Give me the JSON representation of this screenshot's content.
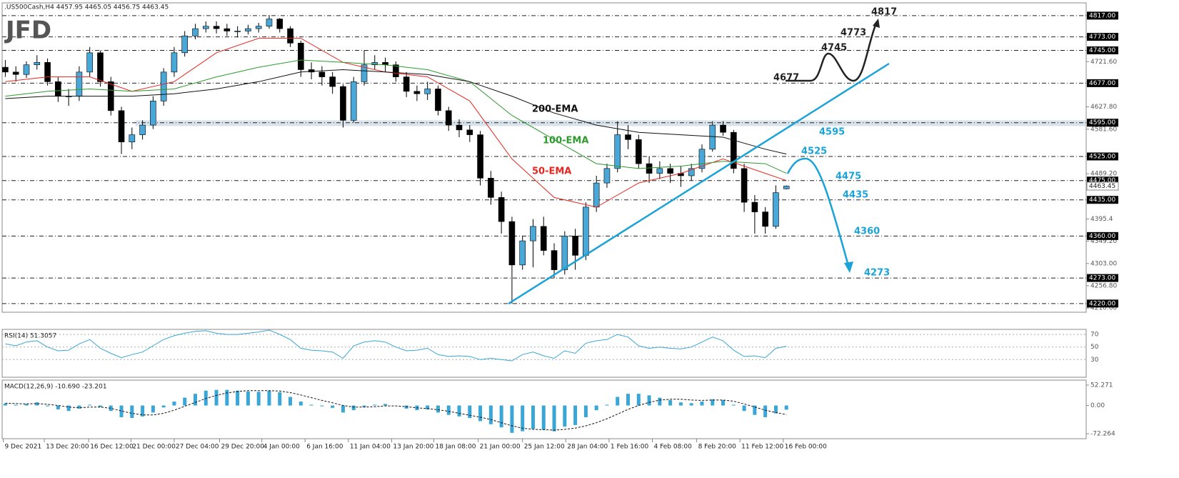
{
  "header": {
    "title": ".US500Cash,H4  4457.95 4465.05 4456.75 4463.45",
    "logo": "JFD"
  },
  "chart_data": [
    {
      "type": "candlestick",
      "xlim": [
        -0.3,
        102.4
      ],
      "ylim": [
        4202,
        4842
      ],
      "colors": {
        "up": "#4aa8d8",
        "down": "#000000"
      },
      "open": [
        4710,
        4700,
        4695,
        4715,
        4720,
        4680,
        4650,
        4650,
        4700,
        4740,
        4680,
        4620,
        4555,
        4570,
        4590,
        4640,
        4700,
        4740,
        4775,
        4790,
        4795,
        4790,
        4785,
        4785,
        4790,
        4795,
        4810,
        4790,
        4760,
        4705,
        4700,
        4690,
        4670,
        4600,
        4680,
        4715,
        4720,
        4715,
        4690,
        4660,
        4655,
        4665,
        4620,
        4590,
        4580,
        4570,
        4480,
        4440,
        4390,
        4300,
        4350,
        4380,
        4330,
        4290,
        4360,
        4320,
        4420,
        4470,
        4500,
        4570,
        4560,
        4510,
        4490,
        4500,
        4490,
        4485,
        4500,
        4540,
        4590,
        4575,
        4500,
        4430,
        4410,
        4380,
        4457.95
      ],
      "high": [
        4725,
        4712,
        4722,
        4735,
        4728,
        4690,
        4665,
        4712,
        4752,
        4745,
        4690,
        4628,
        4585,
        4600,
        4650,
        4708,
        4752,
        4785,
        4800,
        4805,
        4805,
        4800,
        4795,
        4798,
        4802,
        4818,
        4812,
        4795,
        4765,
        4720,
        4712,
        4700,
        4675,
        4690,
        4745,
        4735,
        4730,
        4722,
        4700,
        4672,
        4680,
        4672,
        4628,
        4602,
        4590,
        4578,
        4495,
        4452,
        4400,
        4360,
        4395,
        4400,
        4345,
        4370,
        4375,
        4430,
        4485,
        4510,
        4598,
        4590,
        4570,
        4525,
        4515,
        4510,
        4505,
        4510,
        4550,
        4598,
        4598,
        4580,
        4510,
        4445,
        4420,
        4465,
        4465.05
      ],
      "low": [
        4690,
        4680,
        4688,
        4705,
        4672,
        4638,
        4630,
        4640,
        4690,
        4670,
        4610,
        4530,
        4540,
        4560,
        4582,
        4630,
        4690,
        4732,
        4768,
        4782,
        4780,
        4775,
        4772,
        4778,
        4782,
        4790,
        4782,
        4752,
        4690,
        4685,
        4672,
        4655,
        4585,
        4595,
        4672,
        4705,
        4700,
        4680,
        4648,
        4640,
        4642,
        4610,
        4578,
        4565,
        4555,
        4465,
        4425,
        4365,
        4220,
        4290,
        4295,
        4320,
        4273,
        4280,
        4290,
        4310,
        4410,
        4460,
        4492,
        4540,
        4500,
        4470,
        4478,
        4470,
        4462,
        4475,
        4492,
        4535,
        4568,
        4490,
        4410,
        4365,
        4365,
        4375,
        4456.75
      ],
      "close": [
        4700,
        4695,
        4715,
        4720,
        4680,
        4650,
        4650,
        4700,
        4740,
        4680,
        4620,
        4555,
        4570,
        4590,
        4640,
        4700,
        4740,
        4775,
        4790,
        4795,
        4790,
        4785,
        4785,
        4790,
        4795,
        4810,
        4790,
        4760,
        4705,
        4700,
        4690,
        4670,
        4600,
        4680,
        4715,
        4720,
        4715,
        4690,
        4660,
        4655,
        4665,
        4620,
        4590,
        4580,
        4570,
        4480,
        4440,
        4390,
        4300,
        4350,
        4380,
        4330,
        4290,
        4360,
        4320,
        4420,
        4470,
        4500,
        4570,
        4560,
        4510,
        4490,
        4500,
        4490,
        4485,
        4500,
        4540,
        4590,
        4575,
        4500,
        4430,
        4410,
        4380,
        4450,
        4463.45
      ],
      "series": [
        {
          "name": "50-EMA",
          "color": "#e8261f",
          "x": [
            0,
            4,
            8,
            12,
            16,
            20,
            24,
            28,
            32,
            36,
            40,
            44,
            48,
            52,
            56,
            60,
            64,
            68,
            72,
            74
          ],
          "values": [
            4680,
            4690,
            4690,
            4660,
            4680,
            4740,
            4770,
            4770,
            4720,
            4700,
            4690,
            4640,
            4520,
            4440,
            4420,
            4470,
            4490,
            4520,
            4490,
            4475
          ]
        },
        {
          "name": "100-EMA",
          "color": "#2e9a2e",
          "x": [
            0,
            4,
            8,
            12,
            16,
            20,
            24,
            28,
            32,
            36,
            40,
            44,
            48,
            52,
            56,
            60,
            64,
            68,
            72,
            74
          ],
          "values": [
            4650,
            4660,
            4665,
            4660,
            4665,
            4690,
            4710,
            4725,
            4720,
            4715,
            4705,
            4680,
            4610,
            4560,
            4510,
            4500,
            4505,
            4515,
            4510,
            4490
          ]
        },
        {
          "name": "200-EMA",
          "color": "#111111",
          "x": [
            0,
            4,
            8,
            12,
            16,
            20,
            24,
            28,
            32,
            36,
            40,
            44,
            48,
            52,
            56,
            60,
            64,
            68,
            72,
            74
          ],
          "values": [
            4645,
            4650,
            4650,
            4650,
            4655,
            4665,
            4680,
            4700,
            4705,
            4700,
            4695,
            4680,
            4650,
            4615,
            4590,
            4575,
            4570,
            4565,
            4540,
            4530
          ]
        }
      ],
      "zone": [
        4588,
        4600
      ],
      "current": 4463.45,
      "levels": [
        {
          "value": 4817,
          "label": "4817.00"
        },
        {
          "value": 4773,
          "label": "4773.00"
        },
        {
          "value": 4745,
          "label": "4745.00"
        },
        {
          "value": 4677,
          "label": "4677.00"
        },
        {
          "value": 4595,
          "label": "4595.00"
        },
        {
          "value": 4525,
          "label": "4525.00"
        },
        {
          "value": 4475,
          "label": "4475.00"
        },
        {
          "value": 4435,
          "label": "4435.00"
        },
        {
          "value": 4360,
          "label": "4360.00"
        },
        {
          "value": 4273,
          "label": "4273.00"
        },
        {
          "value": 4220,
          "label": "4220.00"
        }
      ],
      "yticks": [
        {
          "value": 4721.6,
          "label": "4721.60"
        },
        {
          "value": 4627.8,
          "label": "4627.80"
        },
        {
          "value": 4581.6,
          "label": "4581.60"
        },
        {
          "value": 4489.2,
          "label": "4489.20"
        },
        4395.4,
        {
          "value": 4349.2,
          "label": "4349.20"
        },
        {
          "value": 4303,
          "label": "4303.00"
        },
        {
          "value": 4256.8,
          "label": "4256.80"
        },
        {
          "value": 4210.6,
          "label": "4210.60"
        }
      ],
      "xticks": [
        {
          "value": -0.2,
          "label": "9 Dec 2021"
        },
        {
          "value": 3.7,
          "label": "13 Dec 20:00"
        },
        {
          "value": 7.9,
          "label": "16 Dec 12:00"
        },
        {
          "value": 11.9,
          "label": "21 Dec 00:00"
        },
        {
          "value": 16,
          "label": "27 Dec 04:00"
        },
        {
          "value": 20.3,
          "label": "29 Dec 20:00"
        },
        {
          "value": 24.3,
          "label": "4 Jan 00:00"
        },
        {
          "value": 28.4,
          "label": "6 Jan 16:00"
        },
        {
          "value": 32.5,
          "label": "11 Jan 04:00"
        },
        {
          "value": 36.6,
          "label": "13 Jan 20:00"
        },
        {
          "value": 40.6,
          "label": "18 Jan 08:00"
        },
        {
          "value": 44.8,
          "label": "21 Jan 00:00"
        },
        {
          "value": 49,
          "label": "25 Jan 12:00"
        },
        {
          "value": 53.1,
          "label": "28 Jan 04:00"
        },
        {
          "value": 57.2,
          "label": "1 Feb 16:00"
        },
        {
          "value": 61.3,
          "label": "4 Feb 08:00"
        },
        {
          "value": 65.5,
          "label": "8 Feb 20:00"
        },
        {
          "value": 69.6,
          "label": "11 Feb 12:00"
        },
        {
          "value": 73.7,
          "label": "16 Feb 00:00"
        }
      ],
      "annotations": {
        "bullish": {
          "color": "#222222",
          "labels": [
            4677,
            4745,
            4773,
            4817
          ]
        },
        "bearish": {
          "color": "#1aa3d9",
          "labels": [
            4595,
            4525,
            4475,
            4435,
            4360,
            4273
          ]
        }
      }
    },
    {
      "type": "line",
      "title": "RSI(14) 51.3057",
      "color": "#3aa6d6",
      "xlim": [
        -0.3,
        102.4
      ],
      "ylim": [
        3,
        77
      ],
      "yticks": [
        70,
        50,
        30
      ],
      "values": [
        55,
        52,
        58,
        60,
        50,
        44,
        45,
        55,
        62,
        48,
        40,
        33,
        38,
        42,
        52,
        62,
        68,
        72,
        75,
        76,
        72,
        70,
        70,
        72,
        74,
        77,
        70,
        62,
        48,
        45,
        44,
        42,
        32,
        52,
        58,
        60,
        58,
        50,
        44,
        45,
        48,
        38,
        35,
        36,
        35,
        30,
        32,
        30,
        28,
        38,
        42,
        36,
        32,
        44,
        40,
        56,
        60,
        62,
        70,
        66,
        52,
        48,
        50,
        48,
        47,
        50,
        58,
        66,
        60,
        45,
        35,
        36,
        33,
        48,
        51.3057
      ]
    },
    {
      "type": "bar",
      "title": "MACD(12,26,9) -10.690 -23.201",
      "color": "#3aa6d6",
      "signal_color": "#111111",
      "xlim": [
        -0.3,
        102.4
      ],
      "ylim": [
        -85,
        65
      ],
      "yticks": [
        52.271,
        {
          "value": 0,
          "label": "0.00"
        },
        -72.264
      ],
      "values": [
        5,
        2,
        4,
        8,
        -2,
        -10,
        -14,
        -8,
        2,
        -4,
        -14,
        -30,
        -32,
        -28,
        -18,
        -5,
        10,
        20,
        30,
        38,
        40,
        40,
        38,
        36,
        35,
        38,
        34,
        22,
        10,
        2,
        -2,
        -6,
        -18,
        -12,
        -4,
        2,
        4,
        0,
        -8,
        -12,
        -10,
        -18,
        -24,
        -28,
        -32,
        -40,
        -48,
        -56,
        -70,
        -66,
        -60,
        -62,
        -66,
        -54,
        -50,
        -30,
        -12,
        2,
        22,
        30,
        30,
        26,
        20,
        14,
        8,
        6,
        10,
        16,
        14,
        2,
        -14,
        -24,
        -30,
        -20,
        -10.69
      ],
      "signal": [
        6,
        5,
        4,
        5,
        3,
        0,
        -4,
        -6,
        -4,
        -4,
        -7,
        -14,
        -20,
        -24,
        -24,
        -20,
        -12,
        -2,
        8,
        18,
        26,
        32,
        36,
        38,
        38,
        38,
        37,
        33,
        27,
        20,
        13,
        7,
        0,
        -4,
        -4,
        -3,
        -1,
        -1,
        -3,
        -6,
        -8,
        -11,
        -15,
        -20,
        -25,
        -30,
        -36,
        -44,
        -52,
        -58,
        -61,
        -62,
        -63,
        -61,
        -58,
        -52,
        -44,
        -34,
        -22,
        -10,
        0,
        8,
        14,
        16,
        16,
        14,
        13,
        14,
        14,
        11,
        4,
        -4,
        -12,
        -18,
        -23.201
      ]
    }
  ]
}
